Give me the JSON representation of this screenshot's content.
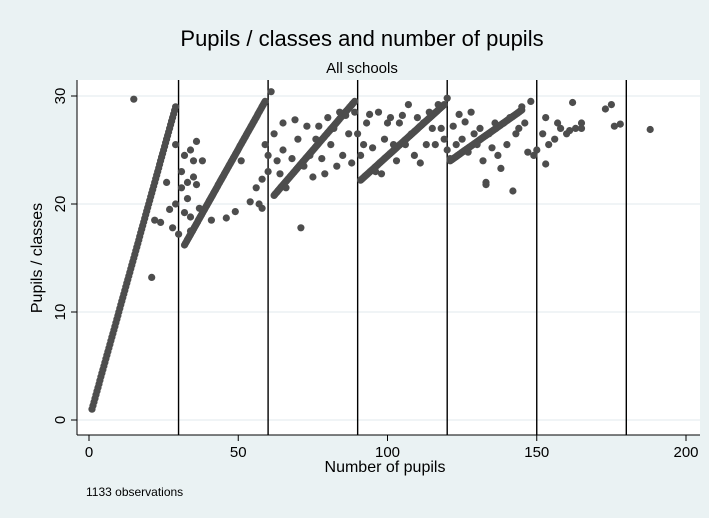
{
  "chart_data": {
    "type": "scatter",
    "title": "Pupils / classes and number of pupils",
    "subtitle": "All schools",
    "xlabel": "Number of pupils",
    "ylabel": "Pupils / classes",
    "xlim": [
      0,
      200
    ],
    "ylim": [
      0,
      30
    ],
    "xticks": [
      0,
      50,
      100,
      150,
      200
    ],
    "yticks": [
      0,
      10,
      20,
      30
    ],
    "grid": true,
    "note": "1133 observations",
    "reference_lines_x": [
      30,
      60,
      90,
      120,
      150,
      180
    ],
    "marker_color": "#4d4d4d",
    "trend_segments": [
      {
        "x": [
          1,
          29
        ],
        "y": [
          1,
          29
        ]
      },
      {
        "x": [
          32,
          59
        ],
        "y": [
          16.2,
          29.5
        ]
      },
      {
        "x": [
          62,
          89
        ],
        "y": [
          20.8,
          29.5
        ]
      },
      {
        "x": [
          91,
          119
        ],
        "y": [
          22.2,
          29.2
        ]
      },
      {
        "x": [
          121,
          145
        ],
        "y": [
          24,
          28.7
        ]
      }
    ],
    "scattered_points": [
      [
        15,
        29.7
      ],
      [
        21,
        13.2
      ],
      [
        22,
        18.5
      ],
      [
        24,
        18.3
      ],
      [
        26,
        22
      ],
      [
        27,
        19.5
      ],
      [
        28,
        17.8
      ],
      [
        29,
        20
      ],
      [
        29,
        25.5
      ],
      [
        30,
        17.2
      ],
      [
        31,
        21.5
      ],
      [
        31,
        23
      ],
      [
        32,
        19.2
      ],
      [
        32,
        24.5
      ],
      [
        33,
        22
      ],
      [
        33,
        20.5
      ],
      [
        34,
        25
      ],
      [
        34,
        18.8
      ],
      [
        35,
        22.5
      ],
      [
        35,
        24
      ],
      [
        36,
        25.8
      ],
      [
        36,
        21.8
      ],
      [
        37,
        19.6
      ],
      [
        38,
        24
      ],
      [
        34,
        17.5
      ],
      [
        41,
        18.5
      ],
      [
        46,
        18.7
      ],
      [
        49,
        19.3
      ],
      [
        51,
        24
      ],
      [
        54,
        20.2
      ],
      [
        56,
        21.5
      ],
      [
        57,
        20
      ],
      [
        58,
        19.6
      ],
      [
        58,
        22.3
      ],
      [
        59,
        25.5
      ],
      [
        60,
        23
      ],
      [
        60,
        24.5
      ],
      [
        61,
        30.4
      ],
      [
        62,
        26.5
      ],
      [
        63,
        24
      ],
      [
        64,
        22.8
      ],
      [
        65,
        25
      ],
      [
        65,
        27.5
      ],
      [
        66,
        21.5
      ],
      [
        68,
        24.2
      ],
      [
        69,
        27.8
      ],
      [
        70,
        26
      ],
      [
        71,
        17.8
      ],
      [
        72,
        23.5
      ],
      [
        73,
        27.2
      ],
      [
        74,
        24.5
      ],
      [
        75,
        22.5
      ],
      [
        76,
        26
      ],
      [
        77,
        27.2
      ],
      [
        78,
        24.2
      ],
      [
        79,
        22.8
      ],
      [
        80,
        28
      ],
      [
        81,
        25.5
      ],
      [
        82,
        27
      ],
      [
        83,
        23.5
      ],
      [
        84,
        28.5
      ],
      [
        85,
        24.5
      ],
      [
        86,
        28.2
      ],
      [
        87,
        26.5
      ],
      [
        88,
        23.8
      ],
      [
        89,
        28.5
      ],
      [
        90,
        26.5
      ],
      [
        91,
        24.5
      ],
      [
        92,
        25.5
      ],
      [
        93,
        27.5
      ],
      [
        94,
        28.3
      ],
      [
        95,
        25.2
      ],
      [
        96,
        23
      ],
      [
        97,
        28.5
      ],
      [
        98,
        22.8
      ],
      [
        99,
        26
      ],
      [
        100,
        27.5
      ],
      [
        101,
        28
      ],
      [
        102,
        25.5
      ],
      [
        103,
        24
      ],
      [
        104,
        27.5
      ],
      [
        105,
        28.2
      ],
      [
        106,
        25.5
      ],
      [
        107,
        29.2
      ],
      [
        108,
        26.5
      ],
      [
        109,
        24.5
      ],
      [
        110,
        28
      ],
      [
        111,
        23.8
      ],
      [
        112,
        27.5
      ],
      [
        113,
        25.5
      ],
      [
        114,
        28.5
      ],
      [
        115,
        27
      ],
      [
        116,
        25.5
      ],
      [
        117,
        29.2
      ],
      [
        118,
        27
      ],
      [
        119,
        26
      ],
      [
        120,
        29.8
      ],
      [
        120,
        25
      ],
      [
        121,
        24.2
      ],
      [
        122,
        27.2
      ],
      [
        123,
        25.5
      ],
      [
        124,
        28.3
      ],
      [
        125,
        26
      ],
      [
        126,
        27.6
      ],
      [
        127,
        24.8
      ],
      [
        128,
        28.5
      ],
      [
        129,
        26.5
      ],
      [
        130,
        25.5
      ],
      [
        131,
        27
      ],
      [
        132,
        24
      ],
      [
        133,
        22
      ],
      [
        133,
        21.8
      ],
      [
        134,
        26.5
      ],
      [
        135,
        25.2
      ],
      [
        136,
        27.5
      ],
      [
        137,
        24.5
      ],
      [
        138,
        23.3
      ],
      [
        139,
        27.5
      ],
      [
        140,
        25.5
      ],
      [
        141,
        28
      ],
      [
        142,
        21.2
      ],
      [
        143,
        26.5
      ],
      [
        144,
        27
      ],
      [
        145,
        29
      ],
      [
        146,
        27.5
      ],
      [
        147,
        24.8
      ],
      [
        148,
        29.5
      ],
      [
        149,
        24.5
      ],
      [
        150,
        25
      ],
      [
        152,
        26.5
      ],
      [
        153,
        28
      ],
      [
        153,
        23.7
      ],
      [
        154,
        25.5
      ],
      [
        156,
        26
      ],
      [
        157,
        27.5
      ],
      [
        158,
        27
      ],
      [
        160,
        26.5
      ],
      [
        161,
        26.8
      ],
      [
        162,
        29.4
      ],
      [
        163,
        27
      ],
      [
        165,
        27.5
      ],
      [
        165,
        27
      ],
      [
        173,
        28.8
      ],
      [
        175,
        29.2
      ],
      [
        176,
        27.2
      ],
      [
        178,
        27.4
      ],
      [
        188,
        26.9
      ]
    ]
  }
}
